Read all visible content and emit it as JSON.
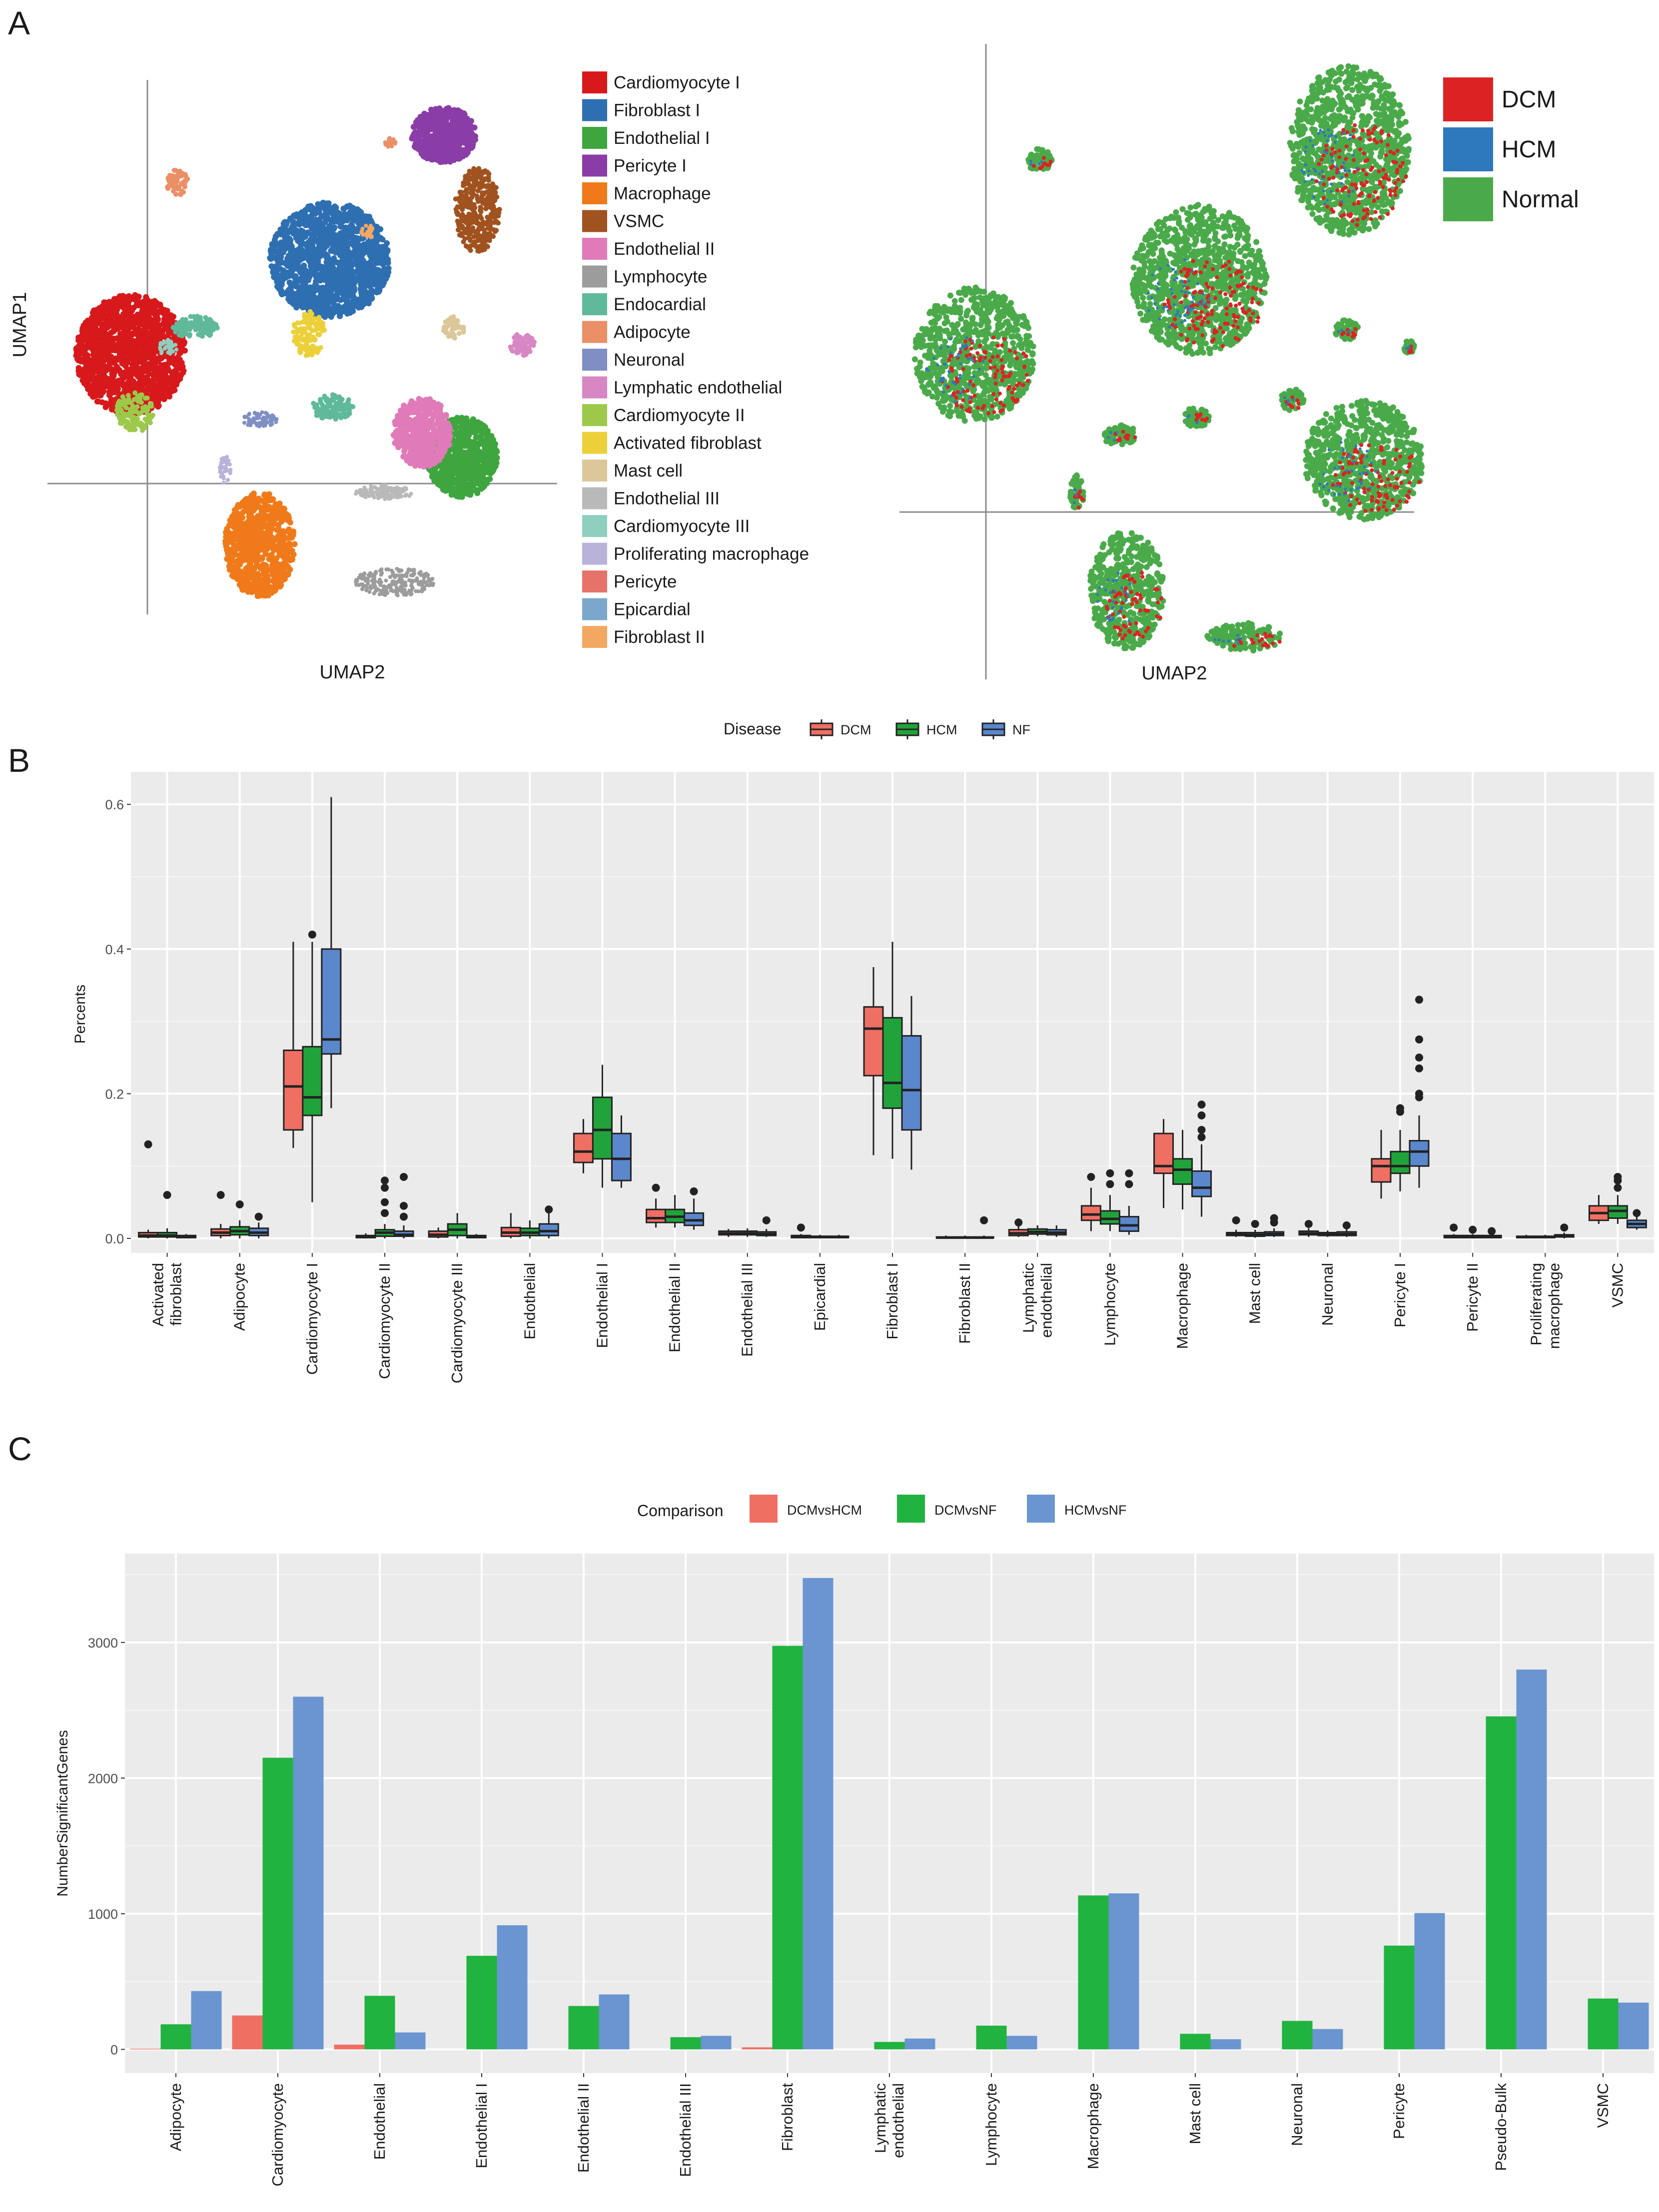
{
  "panels": {
    "a": "A",
    "b": "B",
    "c": "C"
  },
  "panel_a": {
    "left_umap": {
      "xlabel": "UMAP2",
      "ylabel": "UMAP1",
      "legend": [
        {
          "label": "Cardiomyocyte I",
          "color": "#d7191c"
        },
        {
          "label": "Fibroblast I",
          "color": "#2e6fb2"
        },
        {
          "label": "Endothelial I",
          "color": "#3fa53f"
        },
        {
          "label": "Pericyte I",
          "color": "#8a3da6"
        },
        {
          "label": "Macrophage",
          "color": "#f07a1a"
        },
        {
          "label": "VSMC",
          "color": "#a0521f"
        },
        {
          "label": "Endothelial II",
          "color": "#e07ab8"
        },
        {
          "label": "Lymphocyte",
          "color": "#9c9c9c"
        },
        {
          "label": "Endocardial",
          "color": "#5fb99a"
        },
        {
          "label": "Adipocyte",
          "color": "#ea8f66"
        },
        {
          "label": "Neuronal",
          "color": "#7f8fc4"
        },
        {
          "label": "Lymphatic endothelial",
          "color": "#d787c4"
        },
        {
          "label": "Cardiomyocyte II",
          "color": "#9cc94a"
        },
        {
          "label": "Activated fibroblast",
          "color": "#ecd03a"
        },
        {
          "label": "Mast cell",
          "color": "#dcc79a"
        },
        {
          "label": "Endothelial III",
          "color": "#b9b9b9"
        },
        {
          "label": "Cardiomyocyte III",
          "color": "#8ecfbf"
        },
        {
          "label": "Proliferating macrophage",
          "color": "#b9b2d9"
        },
        {
          "label": "Pericyte",
          "color": "#e5736a"
        },
        {
          "label": "Epicardial",
          "color": "#7ba7cc"
        },
        {
          "label": "Fibroblast II",
          "color": "#f3a862"
        }
      ]
    },
    "right_umap": {
      "xlabel": "UMAP2",
      "legend": [
        {
          "label": "DCM",
          "color": "#dc2322"
        },
        {
          "label": "HCM",
          "color": "#2e78bd"
        },
        {
          "label": "Normal",
          "color": "#4aaa4a"
        }
      ]
    }
  },
  "chart_data": [
    {
      "type": "box",
      "panel": "B",
      "legend_title": "Disease",
      "legend": [
        {
          "label": "DCM",
          "color": "#ef6f63"
        },
        {
          "label": "HCM",
          "color": "#21a33b"
        },
        {
          "label": "NF",
          "color": "#5b87cc"
        }
      ],
      "ylabel": "Percents",
      "ylim": [
        -0.02,
        0.645
      ],
      "yticks": [
        "0.0",
        "0.2",
        "0.4",
        "0.6"
      ],
      "ytick_values": [
        0.0,
        0.2,
        0.4,
        0.6
      ],
      "categories": [
        "Activated fibroblast",
        "Adipocyte",
        "Cardiomyocyte I",
        "Cardiomyocyte II",
        "Cardiomyocyte III",
        "Endothelial",
        "Endothelial I",
        "Endothelial II",
        "Endothelial III",
        "Epicardial",
        "Fibroblast I",
        "Fibroblast II",
        "Lymphatic endothelial",
        "Lymphocyte",
        "Macrophage",
        "Mast cell",
        "Neuronal",
        "Pericyte I",
        "Pericyte II",
        "Proliferating macrophage",
        "VSMC"
      ],
      "boxes": [
        [
          [
            0,
            0.002,
            0.004,
            0.008,
            0.012,
            [
              0.13
            ]
          ],
          [
            0,
            0.002,
            0.004,
            0.008,
            0.014,
            [
              0.06
            ]
          ],
          [
            0,
            0.001,
            0.002,
            0.004,
            0.006,
            []
          ]
        ],
        [
          [
            0,
            0.004,
            0.008,
            0.013,
            0.02,
            [
              0.06
            ]
          ],
          [
            0,
            0.005,
            0.01,
            0.016,
            0.025,
            [
              0.047
            ]
          ],
          [
            0,
            0.004,
            0.008,
            0.014,
            0.022,
            [
              0.03
            ]
          ]
        ],
        [
          [
            0.125,
            0.15,
            0.21,
            0.26,
            0.41,
            []
          ],
          [
            0.05,
            0.17,
            0.195,
            0.265,
            0.41,
            [
              0.42
            ]
          ],
          [
            0.18,
            0.255,
            0.275,
            0.4,
            0.61,
            []
          ]
        ],
        [
          [
            0,
            0.001,
            0.002,
            0.004,
            0.007,
            []
          ],
          [
            0,
            0.003,
            0.008,
            0.012,
            0.02,
            [
              0.035,
              0.05,
              0.07,
              0.08
            ]
          ],
          [
            0,
            0.003,
            0.005,
            0.01,
            0.018,
            [
              0.03,
              0.045,
              0.085
            ]
          ]
        ],
        [
          [
            0,
            0.002,
            0.005,
            0.01,
            0.015,
            []
          ],
          [
            0,
            0.004,
            0.012,
            0.02,
            0.035,
            []
          ],
          [
            0,
            0.001,
            0.002,
            0.004,
            0.006,
            []
          ]
        ],
        [
          [
            0,
            0.003,
            0.008,
            0.015,
            0.035,
            []
          ],
          [
            0,
            0.004,
            0.008,
            0.014,
            0.025,
            []
          ],
          [
            0,
            0.004,
            0.01,
            0.02,
            0.045,
            [
              0.04
            ]
          ]
        ],
        [
          [
            0.09,
            0.105,
            0.12,
            0.145,
            0.165,
            []
          ],
          [
            0.07,
            0.11,
            0.15,
            0.195,
            0.24,
            []
          ],
          [
            0.07,
            0.08,
            0.11,
            0.145,
            0.17,
            []
          ]
        ],
        [
          [
            0.015,
            0.022,
            0.028,
            0.04,
            0.055,
            [
              0.07
            ]
          ],
          [
            0.015,
            0.022,
            0.03,
            0.04,
            0.06,
            []
          ],
          [
            0.012,
            0.018,
            0.025,
            0.035,
            0.055,
            [
              0.065
            ]
          ]
        ],
        [
          [
            0.002,
            0.005,
            0.007,
            0.01,
            0.013,
            []
          ],
          [
            0.002,
            0.005,
            0.007,
            0.01,
            0.014,
            []
          ],
          [
            0.002,
            0.004,
            0.006,
            0.009,
            0.013,
            [
              0.025
            ]
          ]
        ],
        [
          [
            0,
            0.001,
            0.002,
            0.004,
            0.006,
            [
              0.015
            ]
          ],
          [
            0,
            0.001,
            0.002,
            0.003,
            0.005,
            []
          ],
          [
            0,
            0.001,
            0.002,
            0.003,
            0.005,
            []
          ]
        ],
        [
          [
            0.115,
            0.225,
            0.29,
            0.32,
            0.375,
            []
          ],
          [
            0.11,
            0.18,
            0.215,
            0.305,
            0.41,
            []
          ],
          [
            0.095,
            0.15,
            0.205,
            0.28,
            0.335,
            []
          ]
        ],
        [
          [
            0,
            0.0005,
            0.001,
            0.002,
            0.004,
            []
          ],
          [
            0,
            0.0005,
            0.001,
            0.002,
            0.004,
            []
          ],
          [
            0,
            0.0005,
            0.001,
            0.002,
            0.004,
            [
              0.025
            ]
          ]
        ],
        [
          [
            0.002,
            0.004,
            0.007,
            0.012,
            0.018,
            [
              0.022
            ]
          ],
          [
            0.003,
            0.006,
            0.009,
            0.013,
            0.018,
            []
          ],
          [
            0.002,
            0.005,
            0.008,
            0.012,
            0.018,
            []
          ]
        ],
        [
          [
            0.01,
            0.025,
            0.033,
            0.045,
            0.07,
            [
              0.085
            ]
          ],
          [
            0.01,
            0.02,
            0.027,
            0.038,
            0.06,
            [
              0.075,
              0.09
            ]
          ],
          [
            0.005,
            0.01,
            0.018,
            0.03,
            0.045,
            [
              0.075,
              0.09
            ]
          ]
        ],
        [
          [
            0.042,
            0.09,
            0.1,
            0.145,
            0.165,
            []
          ],
          [
            0.04,
            0.075,
            0.095,
            0.11,
            0.15,
            []
          ],
          [
            0.03,
            0.058,
            0.07,
            0.093,
            0.13,
            [
              0.14,
              0.15,
              0.17,
              0.185
            ]
          ]
        ],
        [
          [
            0.002,
            0.004,
            0.006,
            0.008,
            0.012,
            [
              0.025
            ]
          ],
          [
            0.001,
            0.003,
            0.005,
            0.008,
            0.012,
            [
              0.02
            ]
          ],
          [
            0.002,
            0.004,
            0.006,
            0.009,
            0.014,
            [
              0.022,
              0.028
            ]
          ]
        ],
        [
          [
            0.002,
            0.005,
            0.007,
            0.01,
            0.014,
            [
              0.02
            ]
          ],
          [
            0.002,
            0.004,
            0.006,
            0.008,
            0.011,
            []
          ],
          [
            0.002,
            0.004,
            0.006,
            0.009,
            0.013,
            [
              0.018
            ]
          ]
        ],
        [
          [
            0.055,
            0.078,
            0.1,
            0.11,
            0.15,
            []
          ],
          [
            0.065,
            0.09,
            0.1,
            0.12,
            0.15,
            [
              0.175,
              0.18
            ]
          ],
          [
            0.07,
            0.1,
            0.12,
            0.135,
            0.17,
            [
              0.195,
              0.2,
              0.235,
              0.25,
              0.275,
              0.33
            ]
          ]
        ],
        [
          [
            0,
            0.001,
            0.002,
            0.004,
            0.006,
            [
              0.015
            ]
          ],
          [
            0,
            0.001,
            0.002,
            0.004,
            0.006,
            [
              0.012
            ]
          ],
          [
            0,
            0.001,
            0.002,
            0.004,
            0.006,
            [
              0.01
            ]
          ]
        ],
        [
          [
            0,
            0.001,
            0.002,
            0.003,
            0.005,
            []
          ],
          [
            0,
            0.001,
            0.002,
            0.003,
            0.005,
            []
          ],
          [
            0,
            0.002,
            0.003,
            0.005,
            0.008,
            [
              0.015
            ]
          ]
        ],
        [
          [
            0.02,
            0.025,
            0.035,
            0.045,
            0.06,
            []
          ],
          [
            0.02,
            0.028,
            0.038,
            0.045,
            0.06,
            [
              0.07,
              0.08,
              0.085
            ]
          ],
          [
            0.012,
            0.015,
            0.02,
            0.025,
            0.03,
            [
              0.035
            ]
          ]
        ]
      ]
    },
    {
      "type": "bar",
      "panel": "C",
      "legend_title": "Comparison",
      "ylabel": "NumberSignificantGenes",
      "ylim": [
        -175,
        3655
      ],
      "yticks": [
        "0",
        "1000",
        "2000",
        "3000"
      ],
      "ytick_values": [
        0,
        1000,
        2000,
        3000
      ],
      "categories": [
        "Adipocyte",
        "Cardiomyocyte",
        "Endothelial",
        "Endothelial I",
        "Endothelial II",
        "Endothelial III",
        "Fibroblast",
        "Lymphatic endothelial",
        "Lymphocyte",
        "Macrophage",
        "Mast cell",
        "Neuronal",
        "Pericyte",
        "Pseudo-Bulk",
        "VSMC"
      ],
      "series": [
        {
          "name": "DCMvsHCM",
          "color": "#ef6f63",
          "values": [
            5,
            250,
            35,
            0,
            0,
            0,
            15,
            0,
            0,
            0,
            0,
            0,
            0,
            0,
            0
          ]
        },
        {
          "name": "DCMvsNF",
          "color": "#21b33f",
          "values": [
            185,
            2150,
            395,
            690,
            320,
            90,
            2975,
            55,
            175,
            1135,
            115,
            210,
            765,
            2455,
            375
          ]
        },
        {
          "name": "HCMvsNF",
          "color": "#6a95d1",
          "values": [
            430,
            2600,
            125,
            915,
            405,
            100,
            3475,
            80,
            100,
            1150,
            75,
            150,
            1005,
            2800,
            345
          ]
        }
      ]
    }
  ]
}
